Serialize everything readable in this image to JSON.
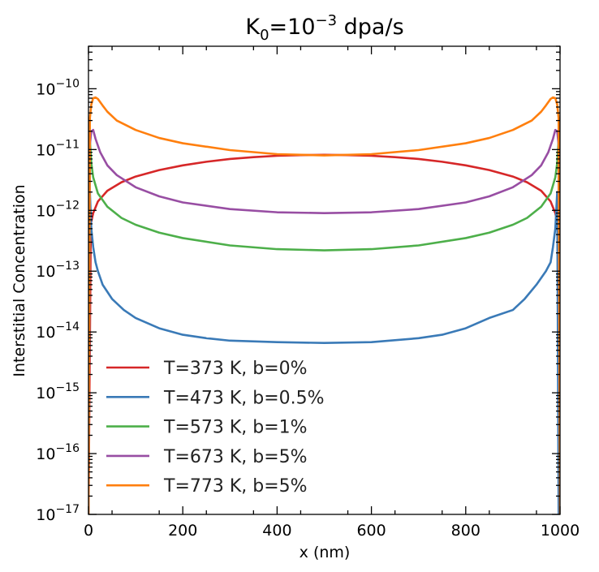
{
  "chart_data": {
    "type": "line",
    "title": {
      "base": "K",
      "base_sub": "0",
      "pre_exp": "=10",
      "exp": "−3",
      "suffix": " dpa/s"
    },
    "xlabel": "x (nm)",
    "ylabel": "Interstitial Concentration",
    "xlim": [
      0,
      1000
    ],
    "ylim": [
      1e-17,
      5e-10
    ],
    "yscale": "log",
    "x_ticks": [
      {
        "value": 0,
        "label": "0"
      },
      {
        "value": 200,
        "label": "200"
      },
      {
        "value": 400,
        "label": "400"
      },
      {
        "value": 600,
        "label": "600"
      },
      {
        "value": 800,
        "label": "800"
      },
      {
        "value": 1000,
        "label": "1000"
      }
    ],
    "y_ticks": [
      {
        "exp": -17,
        "base": "10",
        "sup": "−17"
      },
      {
        "exp": -16,
        "base": "10",
        "sup": "−16"
      },
      {
        "exp": -15,
        "base": "10",
        "sup": "−15"
      },
      {
        "exp": -14,
        "base": "10",
        "sup": "−14"
      },
      {
        "exp": -13,
        "base": "10",
        "sup": "−13"
      },
      {
        "exp": -12,
        "base": "10",
        "sup": "−12"
      },
      {
        "exp": -11,
        "base": "10",
        "sup": "−11"
      },
      {
        "exp": -10,
        "base": "10",
        "sup": "−10"
      }
    ],
    "legend_position": "lower-left",
    "grid": false,
    "series": [
      {
        "name": "T=373 K, b=0%",
        "color": "#d62728",
        "x": [
          0,
          5,
          10,
          20,
          40,
          70,
          100,
          150,
          200,
          250,
          300,
          350,
          400,
          450,
          500,
          550,
          600,
          650,
          700,
          750,
          800,
          850,
          900,
          930,
          960,
          980,
          990,
          995,
          1000
        ],
        "y": [
          1e-17,
          6e-13,
          9e-13,
          1.4e-12,
          2.1e-12,
          2.9e-12,
          3.6e-12,
          4.6e-12,
          5.5e-12,
          6.3e-12,
          7e-12,
          7.5e-12,
          7.9e-12,
          8.1e-12,
          8.2e-12,
          8.1e-12,
          7.9e-12,
          7.5e-12,
          7e-12,
          6.3e-12,
          5.5e-12,
          4.6e-12,
          3.6e-12,
          2.9e-12,
          2.1e-12,
          1.4e-12,
          9e-13,
          6e-13,
          1e-17
        ]
      },
      {
        "name": "T=473 K, b=0.5%",
        "color": "#3a7ab7",
        "x": [
          0,
          3,
          6,
          10,
          15,
          20,
          30,
          50,
          75,
          100,
          150,
          200,
          250,
          300,
          400,
          500,
          600,
          700,
          750,
          800,
          850,
          900,
          925,
          950,
          970,
          980,
          985,
          990,
          994,
          997,
          1000
        ],
        "y": [
          1e-17,
          2e-12,
          5e-13,
          2.5e-13,
          1.4e-13,
          1e-13,
          6e-14,
          3.5e-14,
          2.3e-14,
          1.7e-14,
          1.15e-14,
          9e-15,
          7.9e-15,
          7.2e-15,
          6.8e-15,
          6.6e-15,
          6.8e-15,
          7.9e-15,
          9e-15,
          1.15e-14,
          1.7e-14,
          2.3e-14,
          3.5e-14,
          6e-14,
          1e-13,
          1.4e-13,
          2.5e-13,
          5e-13,
          2e-12,
          1e-17,
          1e-17
        ]
      },
      {
        "name": "T=573 K, b=1%",
        "color": "#4daf4a",
        "x": [
          0,
          3,
          6,
          10,
          20,
          40,
          70,
          100,
          150,
          200,
          300,
          400,
          500,
          600,
          700,
          800,
          850,
          900,
          930,
          960,
          980,
          990,
          994,
          997,
          1000
        ],
        "y": [
          1e-17,
          1.4e-11,
          6e-12,
          3.5e-12,
          1.9e-12,
          1.15e-12,
          7.5e-13,
          5.8e-13,
          4.3e-13,
          3.5e-13,
          2.65e-13,
          2.3e-13,
          2.2e-13,
          2.3e-13,
          2.65e-13,
          3.5e-13,
          4.3e-13,
          5.8e-13,
          7.5e-13,
          1.15e-12,
          1.9e-12,
          3.5e-12,
          6e-12,
          1.4e-11,
          1e-17
        ]
      },
      {
        "name": "T=673 K, b=5%",
        "color": "#984ea3",
        "x": [
          0,
          3,
          6,
          10,
          15,
          25,
          40,
          60,
          100,
          150,
          200,
          300,
          400,
          500,
          600,
          700,
          800,
          850,
          900,
          940,
          960,
          975,
          985,
          990,
          994,
          997,
          1000
        ],
        "y": [
          1e-17,
          1.2e-11,
          2e-11,
          2.1e-11,
          1.5e-11,
          9e-12,
          5.5e-12,
          3.8e-12,
          2.4e-12,
          1.7e-12,
          1.35e-12,
          1.05e-12,
          9.3e-13,
          9e-13,
          9.3e-13,
          1.05e-12,
          1.35e-12,
          1.7e-12,
          2.4e-12,
          3.8e-12,
          5.5e-12,
          9e-12,
          1.5e-11,
          2.1e-11,
          2e-11,
          1.2e-11,
          1e-17
        ]
      },
      {
        "name": "T=773 K, b=5%",
        "color": "#ff7f0e",
        "x": [
          0,
          3,
          6,
          10,
          15,
          20,
          30,
          40,
          60,
          100,
          150,
          200,
          300,
          400,
          500,
          600,
          700,
          800,
          850,
          900,
          940,
          960,
          970,
          980,
          985,
          990,
          994,
          997,
          1000
        ],
        "y": [
          1e-17,
          3.3e-11,
          5.5e-11,
          7e-11,
          7.2e-11,
          6.8e-11,
          5.3e-11,
          4.2e-11,
          3e-11,
          2.1e-11,
          1.55e-11,
          1.27e-11,
          9.8e-12,
          8.4e-12,
          8e-12,
          8.4e-12,
          9.8e-12,
          1.27e-11,
          1.55e-11,
          2.1e-11,
          3e-11,
          4.2e-11,
          5.3e-11,
          6.8e-11,
          7.2e-11,
          7e-11,
          5.5e-11,
          3.3e-11,
          1e-17
        ]
      }
    ]
  }
}
